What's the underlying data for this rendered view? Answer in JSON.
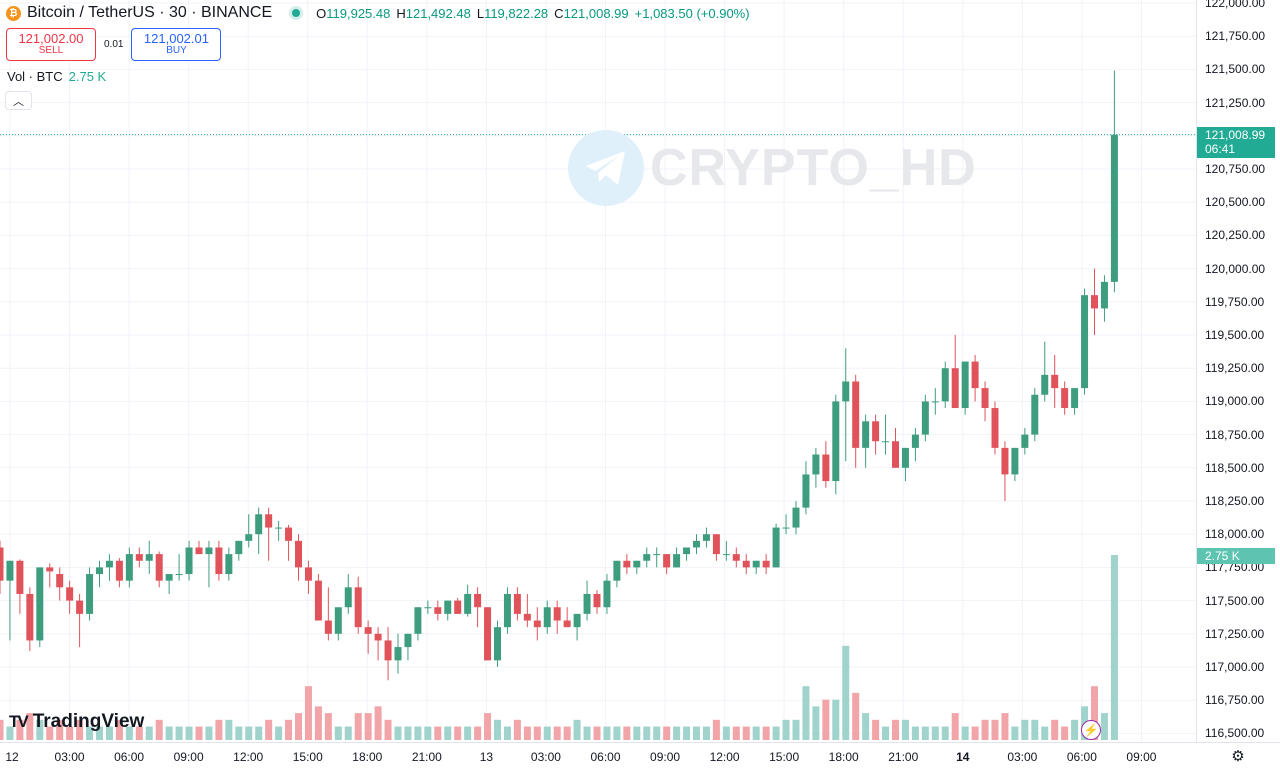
{
  "header": {
    "symbol": "Bitcoin / TetherUS · 30 · BINANCE",
    "logo_glyph": "₿",
    "ohlc": {
      "open_label": "O",
      "open": "119,925.48",
      "high_label": "H",
      "high": "121,492.48",
      "low_label": "L",
      "low": "119,822.28",
      "close_label": "C",
      "close": "121,008.99",
      "change": "+1,083.50 (+0.90%)"
    }
  },
  "trade": {
    "sell_price": "121,002.00",
    "sell_label": "SELL",
    "spread": "0.01",
    "buy_price": "121,002.01",
    "buy_label": "BUY"
  },
  "volume_indicator": {
    "label": "Vol · BTC",
    "value": "2.75 K"
  },
  "collapse_glyph": "︿",
  "last_price": {
    "value": "121,008.99",
    "countdown": "06:41"
  },
  "volume_badge": "2.75 K",
  "watermark": {
    "text": "CRYPTO_HD"
  },
  "branding": {
    "mark": "TV",
    "name": "TradingView"
  },
  "colors": {
    "up": "#089981",
    "down": "#f23645",
    "up_candle": "#3f9d7f",
    "down_candle": "#e0535a",
    "up_vol": "#9fd3cc",
    "down_vol": "#f2a5a8",
    "last_price": "#22ab94"
  },
  "chart_data": {
    "type": "candlestick",
    "symbol": "BTCUSDT",
    "interval": "30",
    "ylim": [
      116400,
      122000
    ],
    "y_ticks": [
      "122,000.00",
      "121,750.00",
      "121,500.00",
      "121,250.00",
      "121,000.00",
      "120,750.00",
      "120,500.00",
      "120,250.00",
      "120,000.00",
      "119,750.00",
      "119,500.00",
      "119,250.00",
      "119,000.00",
      "118,750.00",
      "118,500.00",
      "118,250.00",
      "118,000.00",
      "117,750.00",
      "117,500.00",
      "117,250.00",
      "117,000.00",
      "116,750.00",
      "116,500.00"
    ],
    "x_ticks": [
      {
        "label": "12",
        "bold": false
      },
      {
        "label": "03:00",
        "bold": false
      },
      {
        "label": "06:00",
        "bold": false
      },
      {
        "label": "09:00",
        "bold": false
      },
      {
        "label": "12:00",
        "bold": false
      },
      {
        "label": "15:00",
        "bold": false
      },
      {
        "label": "18:00",
        "bold": false
      },
      {
        "label": "21:00",
        "bold": false
      },
      {
        "label": "13",
        "bold": false
      },
      {
        "label": "03:00",
        "bold": false
      },
      {
        "label": "06:00",
        "bold": false
      },
      {
        "label": "09:00",
        "bold": false
      },
      {
        "label": "12:00",
        "bold": false
      },
      {
        "label": "15:00",
        "bold": false
      },
      {
        "label": "18:00",
        "bold": false
      },
      {
        "label": "21:00",
        "bold": false
      },
      {
        "label": "14",
        "bold": true
      },
      {
        "label": "03:00",
        "bold": false
      },
      {
        "label": "06:00",
        "bold": false
      },
      {
        "label": "09:00",
        "bold": false
      }
    ],
    "candles": [
      [
        117900,
        117950,
        117550,
        117650,
        0.3
      ],
      [
        117650,
        117800,
        117200,
        117800,
        0.2
      ],
      [
        117800,
        117810,
        117400,
        117550,
        0.3
      ],
      [
        117550,
        117600,
        117120,
        117200,
        0.4
      ],
      [
        117200,
        117750,
        117150,
        117750,
        0.3
      ],
      [
        117750,
        117780,
        117600,
        117720,
        0.2
      ],
      [
        117700,
        117750,
        117500,
        117600,
        0.3
      ],
      [
        117600,
        117650,
        117400,
        117500,
        0.2
      ],
      [
        117500,
        117550,
        117150,
        117400,
        0.3
      ],
      [
        117400,
        117750,
        117350,
        117700,
        0.2
      ],
      [
        117700,
        117800,
        117600,
        117750,
        0.2
      ],
      [
        117750,
        117850,
        117650,
        117800,
        0.2
      ],
      [
        117800,
        117820,
        117600,
        117650,
        0.3
      ],
      [
        117650,
        117900,
        117600,
        117850,
        0.2
      ],
      [
        117850,
        117900,
        117750,
        117800,
        0.2
      ],
      [
        117800,
        117950,
        117700,
        117850,
        0.2
      ],
      [
        117850,
        117870,
        117600,
        117650,
        0.3
      ],
      [
        117650,
        117700,
        117550,
        117700,
        0.2
      ],
      [
        117700,
        117850,
        117650,
        117700,
        0.2
      ],
      [
        117700,
        117950,
        117650,
        117900,
        0.2
      ],
      [
        117900,
        117950,
        117850,
        117850,
        0.2
      ],
      [
        117850,
        117950,
        117600,
        117900,
        0.2
      ],
      [
        117900,
        117950,
        117650,
        117700,
        0.3
      ],
      [
        117700,
        117900,
        117650,
        117850,
        0.3
      ],
      [
        117850,
        117950,
        117800,
        117950,
        0.2
      ],
      [
        117950,
        118150,
        117900,
        118000,
        0.2
      ],
      [
        118000,
        118200,
        117850,
        118150,
        0.2
      ],
      [
        118150,
        118200,
        117800,
        118050,
        0.3
      ],
      [
        118050,
        118100,
        117950,
        118050,
        0.2
      ],
      [
        118050,
        118070,
        117800,
        117950,
        0.3
      ],
      [
        117950,
        118000,
        117650,
        117750,
        0.4
      ],
      [
        117750,
        117800,
        117550,
        117650,
        0.8
      ],
      [
        117650,
        117700,
        117350,
        117350,
        0.5
      ],
      [
        117350,
        117600,
        117200,
        117250,
        0.4
      ],
      [
        117250,
        117400,
        117200,
        117450,
        0.2
      ],
      [
        117450,
        117700,
        117400,
        117600,
        0.2
      ],
      [
        117600,
        117680,
        117250,
        117300,
        0.4
      ],
      [
        117300,
        117350,
        117100,
        117250,
        0.4
      ],
      [
        117250,
        117300,
        117050,
        117200,
        0.5
      ],
      [
        117200,
        117300,
        116900,
        117050,
        0.3
      ],
      [
        117050,
        117250,
        116950,
        117150,
        0.2
      ],
      [
        117150,
        117200,
        117050,
        117250,
        0.2
      ],
      [
        117250,
        117450,
        117200,
        117450,
        0.2
      ],
      [
        117450,
        117500,
        117400,
        117450,
        0.2
      ],
      [
        117450,
        117500,
        117350,
        117400,
        0.2
      ],
      [
        117400,
        117500,
        117350,
        117500,
        0.2
      ],
      [
        117500,
        117520,
        117400,
        117400,
        0.2
      ],
      [
        117400,
        117620,
        117380,
        117550,
        0.2
      ],
      [
        117550,
        117600,
        117300,
        117450,
        0.2
      ],
      [
        117450,
        117450,
        117050,
        117050,
        0.4
      ],
      [
        117050,
        117350,
        117000,
        117300,
        0.3
      ],
      [
        117300,
        117600,
        117250,
        117550,
        0.2
      ],
      [
        117550,
        117600,
        117350,
        117400,
        0.3
      ],
      [
        117400,
        117550,
        117300,
        117350,
        0.2
      ],
      [
        117350,
        117450,
        117200,
        117300,
        0.2
      ],
      [
        117300,
        117500,
        117250,
        117450,
        0.2
      ],
      [
        117450,
        117500,
        117250,
        117350,
        0.2
      ],
      [
        117350,
        117450,
        117300,
        117300,
        0.2
      ],
      [
        117300,
        117400,
        117200,
        117400,
        0.3
      ],
      [
        117400,
        117650,
        117350,
        117550,
        0.2
      ],
      [
        117550,
        117580,
        117400,
        117450,
        0.2
      ],
      [
        117450,
        117700,
        117400,
        117650,
        0.2
      ],
      [
        117650,
        117800,
        117600,
        117800,
        0.2
      ],
      [
        117800,
        117850,
        117700,
        117750,
        0.2
      ],
      [
        117750,
        117800,
        117700,
        117800,
        0.2
      ],
      [
        117800,
        117900,
        117750,
        117850,
        0.2
      ],
      [
        117850,
        117900,
        117750,
        117850,
        0.2
      ],
      [
        117850,
        117850,
        117700,
        117750,
        0.2
      ],
      [
        117750,
        117900,
        117750,
        117850,
        0.2
      ],
      [
        117850,
        117900,
        117800,
        117900,
        0.2
      ],
      [
        117900,
        118000,
        117850,
        117950,
        0.2
      ],
      [
        117950,
        118050,
        117900,
        118000,
        0.2
      ],
      [
        118000,
        118000,
        117800,
        117850,
        0.3
      ],
      [
        117850,
        117950,
        117800,
        117850,
        0.2
      ],
      [
        117850,
        117900,
        117750,
        117800,
        0.2
      ],
      [
        117800,
        117850,
        117700,
        117750,
        0.2
      ],
      [
        117750,
        117800,
        117700,
        117800,
        0.2
      ],
      [
        117800,
        117850,
        117700,
        117750,
        0.2
      ],
      [
        117750,
        118080,
        117750,
        118050,
        0.2
      ],
      [
        118050,
        118150,
        118000,
        118050,
        0.3
      ],
      [
        118050,
        118250,
        118000,
        118200,
        0.3
      ],
      [
        118200,
        118550,
        118150,
        118450,
        0.8
      ],
      [
        118450,
        118650,
        118350,
        118600,
        0.5
      ],
      [
        118600,
        118700,
        118350,
        118400,
        0.6
      ],
      [
        118400,
        119050,
        118300,
        119000,
        0.6
      ],
      [
        119000,
        119400,
        118550,
        119150,
        1.4
      ],
      [
        119150,
        119200,
        118500,
        118650,
        0.7
      ],
      [
        118650,
        118900,
        118500,
        118850,
        0.4
      ],
      [
        118850,
        118900,
        118600,
        118700,
        0.3
      ],
      [
        118700,
        118900,
        118600,
        118700,
        0.2
      ],
      [
        118700,
        118800,
        118550,
        118500,
        0.3
      ],
      [
        118500,
        118650,
        118400,
        118650,
        0.3
      ],
      [
        118650,
        118800,
        118550,
        118750,
        0.2
      ],
      [
        118750,
        119050,
        118700,
        119000,
        0.2
      ],
      [
        119000,
        119100,
        118900,
        119000,
        0.2
      ],
      [
        119000,
        119300,
        118950,
        119250,
        0.2
      ],
      [
        119250,
        119500,
        118950,
        118950,
        0.4
      ],
      [
        118950,
        119300,
        118900,
        119300,
        0.2
      ],
      [
        119300,
        119350,
        119000,
        119100,
        0.2
      ],
      [
        119100,
        119150,
        118850,
        118950,
        0.3
      ],
      [
        118950,
        119000,
        118600,
        118650,
        0.3
      ],
      [
        118650,
        118700,
        118250,
        118450,
        0.4
      ],
      [
        118450,
        118650,
        118400,
        118650,
        0.2
      ],
      [
        118650,
        118800,
        118600,
        118750,
        0.3
      ],
      [
        118750,
        119100,
        118700,
        119050,
        0.3
      ],
      [
        119050,
        119450,
        119000,
        119200,
        0.2
      ],
      [
        119200,
        119350,
        118950,
        119100,
        0.3
      ],
      [
        119100,
        119150,
        118900,
        118950,
        0.2
      ],
      [
        118950,
        119100,
        118900,
        119100,
        0.3
      ],
      [
        119100,
        119850,
        119050,
        119800,
        0.5
      ],
      [
        119800,
        120000,
        119500,
        119700,
        0.8
      ],
      [
        119700,
        119950,
        119600,
        119900,
        0.4
      ],
      [
        119900,
        121492,
        119822,
        121008,
        2.75
      ]
    ],
    "last_price": 121008.99,
    "volume_unit": "K"
  }
}
